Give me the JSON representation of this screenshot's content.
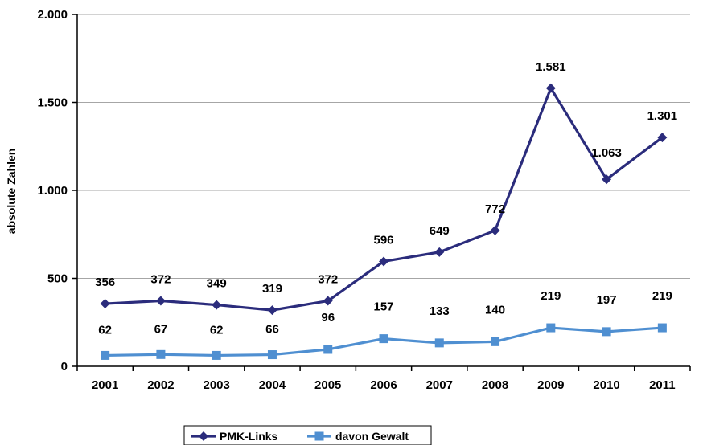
{
  "chart_data": {
    "type": "line",
    "ylabel": "absolute Zahlen",
    "ylim": [
      0,
      2000
    ],
    "grid": true,
    "legend": "bottom",
    "categories": [
      "2001",
      "2002",
      "2003",
      "2004",
      "2005",
      "2006",
      "2007",
      "2008",
      "2009",
      "2010",
      "2011"
    ],
    "yticks": [
      0,
      500,
      1000,
      1500,
      2000
    ],
    "ytick_labels": [
      "0",
      "500",
      "1.000",
      "1.500",
      "2.000"
    ],
    "series": [
      {
        "name": "PMK-Links",
        "color": "#2b2c7c",
        "marker": "diamond",
        "values": [
          356,
          372,
          349,
          319,
          372,
          596,
          649,
          772,
          1581,
          1063,
          1301
        ],
        "labels": [
          "356",
          "372",
          "349",
          "319",
          "372",
          "596",
          "649",
          "772",
          "1.581",
          "1.063",
          "1.301"
        ]
      },
      {
        "name": "davon Gewalt",
        "color": "#4f8fd1",
        "marker": "square",
        "values": [
          62,
          67,
          62,
          66,
          96,
          157,
          133,
          140,
          219,
          197,
          219
        ],
        "labels": [
          "62",
          "67",
          "62",
          "66",
          "96",
          "157",
          "133",
          "140",
          "219",
          "197",
          "219"
        ]
      }
    ]
  }
}
